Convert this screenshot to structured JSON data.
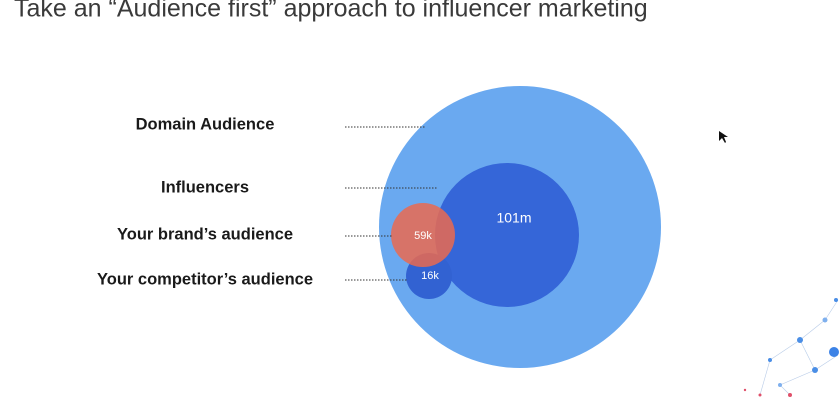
{
  "header": {
    "title": "Take an “Audience first” approach to influencer marketing"
  },
  "nodes": [
    {
      "label": "Domain Audience"
    },
    {
      "label": "Influencers",
      "value": "101m"
    },
    {
      "label": "Your brand’s audience",
      "value": "59k"
    },
    {
      "label": "Your competitor’s audience",
      "value": "16k"
    }
  ]
}
